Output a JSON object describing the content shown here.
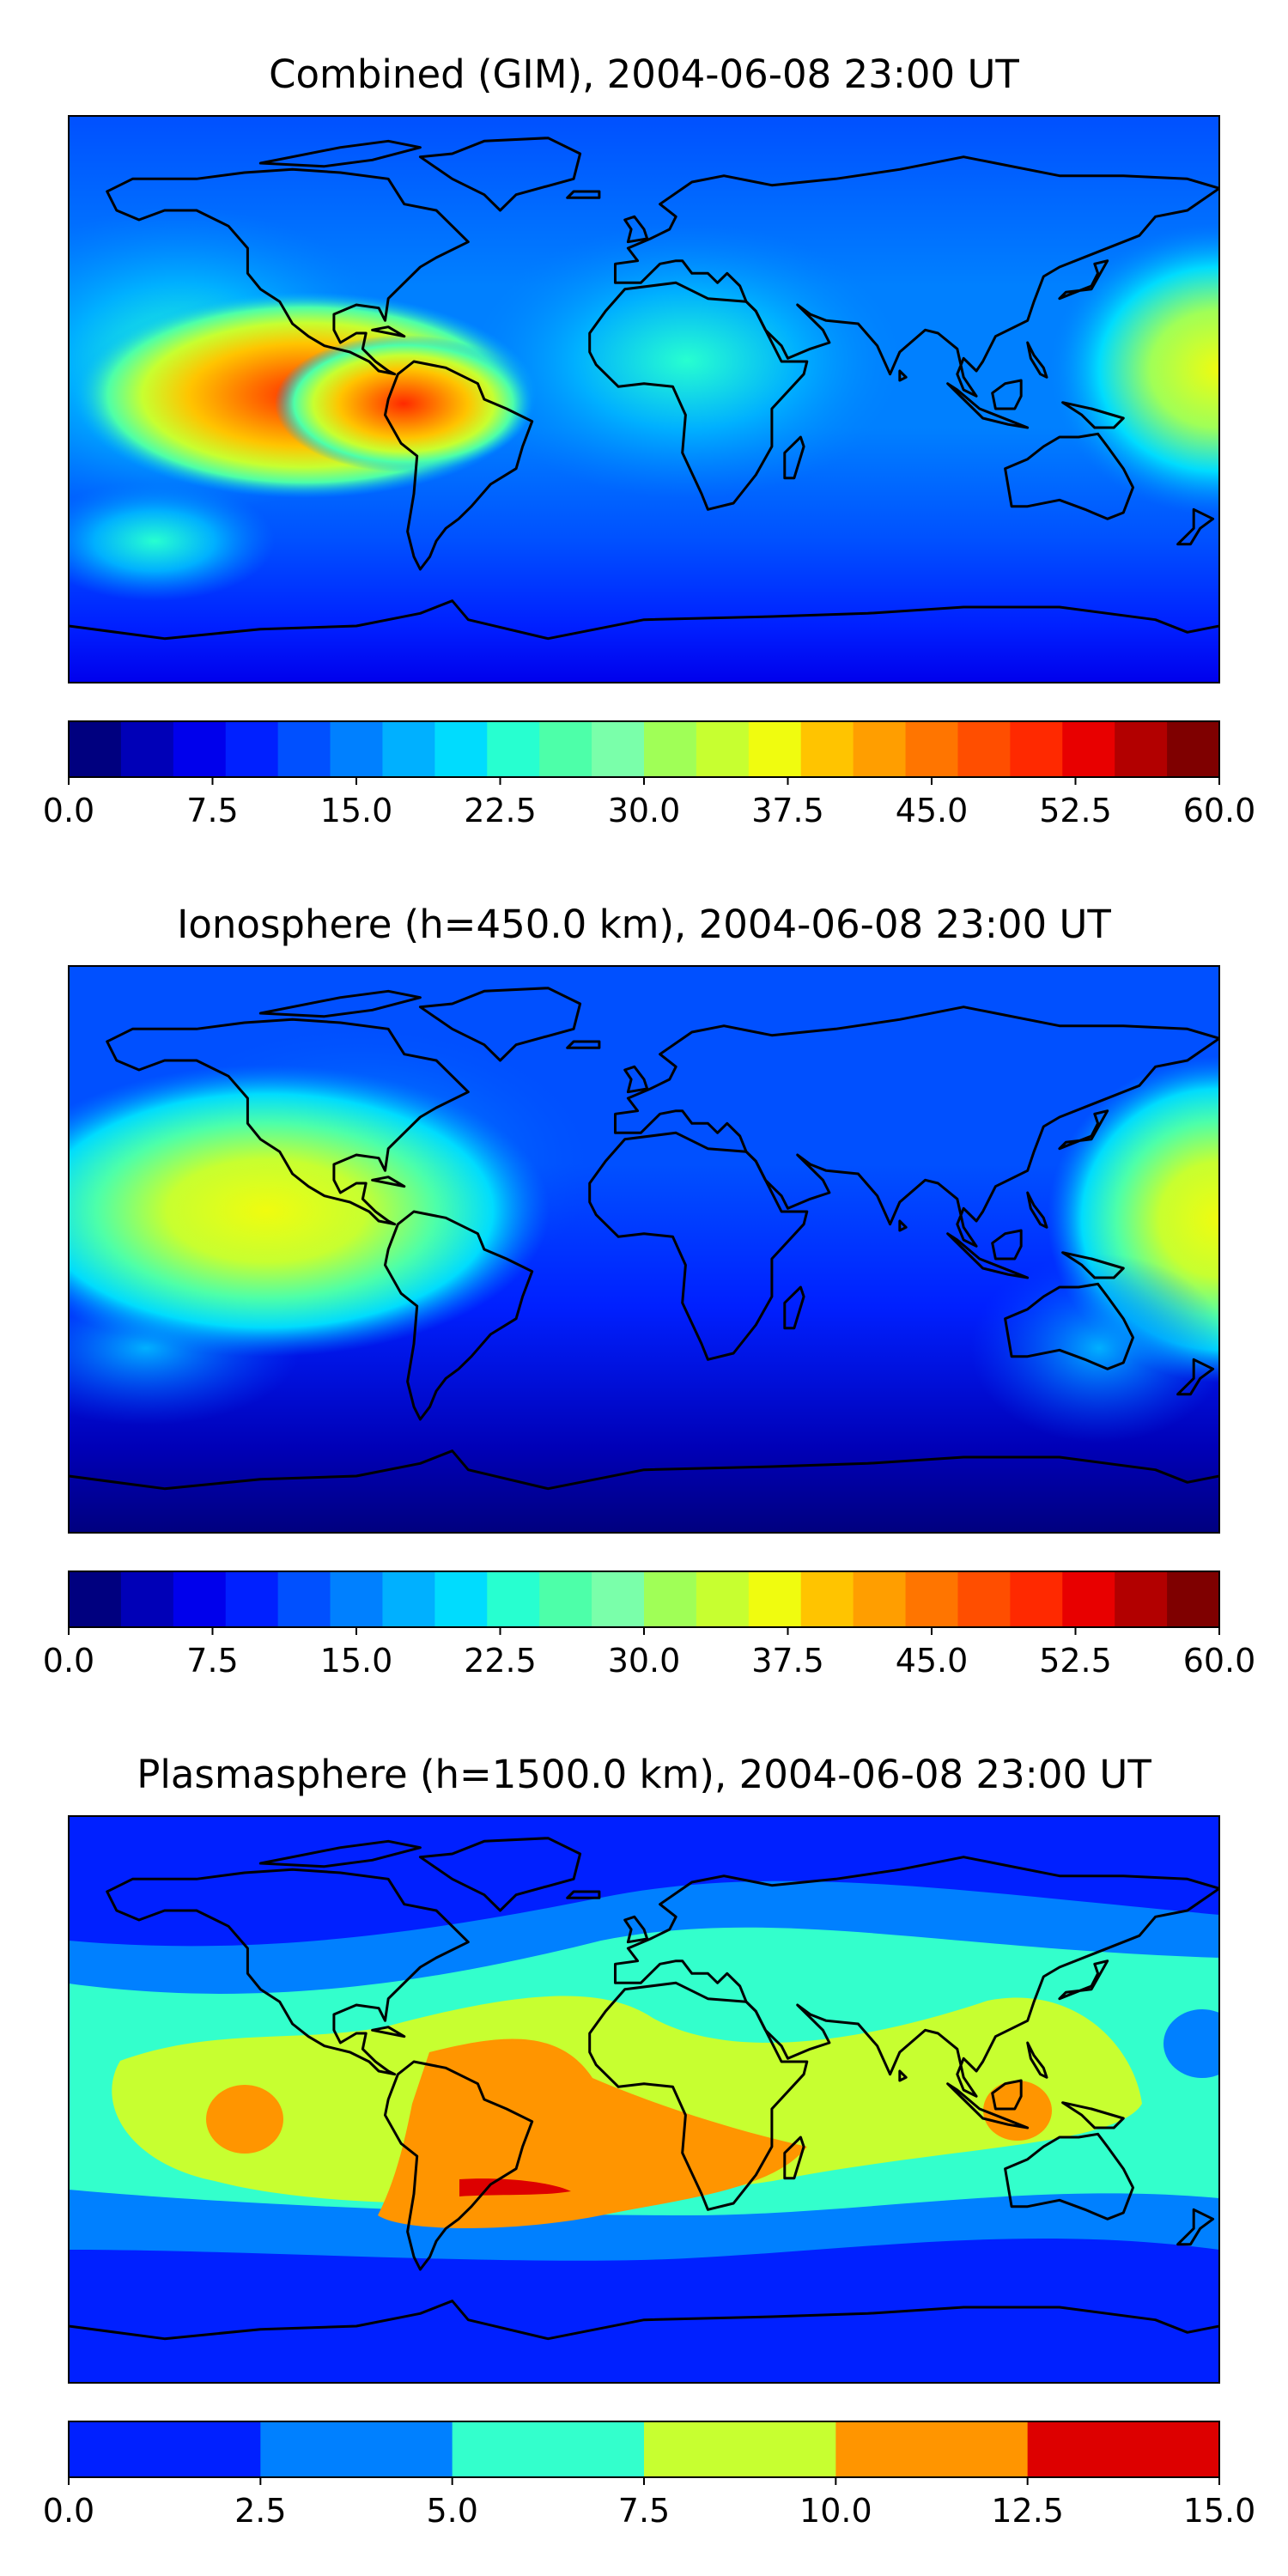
{
  "chart_data": [
    {
      "type": "heatmap",
      "title": "Combined (GIM), 2004-06-08 23:00 UT",
      "colorbar": {
        "ticks": [
          "0.0",
          "7.5",
          "15.0",
          "22.5",
          "30.0",
          "37.5",
          "45.0",
          "52.5",
          "60.0"
        ],
        "colors": [
          "#00007f",
          "#0000b7",
          "#0000ec",
          "#0020ff",
          "#0050ff",
          "#0080ff",
          "#00b0ff",
          "#00dcfe",
          "#27ffd0",
          "#4dffa9",
          "#7affaa",
          "#a0ff57",
          "#c7ff30",
          "#f0fc0f",
          "#ffc400",
          "#ff9e00",
          "#ff7500",
          "#ff4e00",
          "#ff2900",
          "#e80000",
          "#b20000",
          "#7f0000"
        ]
      },
      "blobs": [
        {
          "lon": -120,
          "lat": 0,
          "value": 50
        },
        {
          "lon": -75,
          "lat": -5,
          "value": 45
        },
        {
          "lon": 165,
          "lat": 10,
          "value": 37
        },
        {
          "lon": 20,
          "lat": 5,
          "value": 22
        },
        {
          "lon": -150,
          "lat": -30,
          "value": 18
        }
      ]
    },
    {
      "type": "heatmap",
      "title": "Ionosphere  (h=450.0 km), 2004-06-08 23:00 UT",
      "colorbar": {
        "ticks": [
          "0.0",
          "7.5",
          "15.0",
          "22.5",
          "30.0",
          "37.5",
          "45.0",
          "52.5",
          "60.0"
        ],
        "colors": [
          "#00007f",
          "#0000b7",
          "#0000ec",
          "#0020ff",
          "#0050ff",
          "#0080ff",
          "#00b0ff",
          "#00dcfe",
          "#27ffd0",
          "#4dffa9",
          "#7affaa",
          "#a0ff57",
          "#c7ff30",
          "#f0fc0f",
          "#ffc400",
          "#ff9e00",
          "#ff7500",
          "#ff4e00",
          "#ff2900",
          "#e80000",
          "#b20000",
          "#7f0000"
        ]
      },
      "blobs": [
        {
          "lon": -110,
          "lat": 0,
          "value": 37
        },
        {
          "lon": 165,
          "lat": 5,
          "value": 35
        },
        {
          "lon": -40,
          "lat": -5,
          "value": 20
        }
      ]
    },
    {
      "type": "heatmap",
      "title": "Plasmasphere (h=1500.0 km), 2004-06-08 23:00 UT",
      "colorbar": {
        "ticks": [
          "0.0",
          "2.5",
          "5.0",
          "7.5",
          "10.0",
          "12.5",
          "15.0"
        ],
        "colors": [
          "#0020ff",
          "#0080ff",
          "#33ffcc",
          "#c7ff30",
          "#ff9500",
          "#dd0000"
        ]
      },
      "blobs": [
        {
          "lon": -155,
          "lat": -5,
          "value": 11
        },
        {
          "lon": -40,
          "lat": -15,
          "value": 11
        },
        {
          "lon": 120,
          "lat": -10,
          "value": 11
        },
        {
          "lon": -55,
          "lat": -30,
          "value": 13
        }
      ]
    }
  ]
}
